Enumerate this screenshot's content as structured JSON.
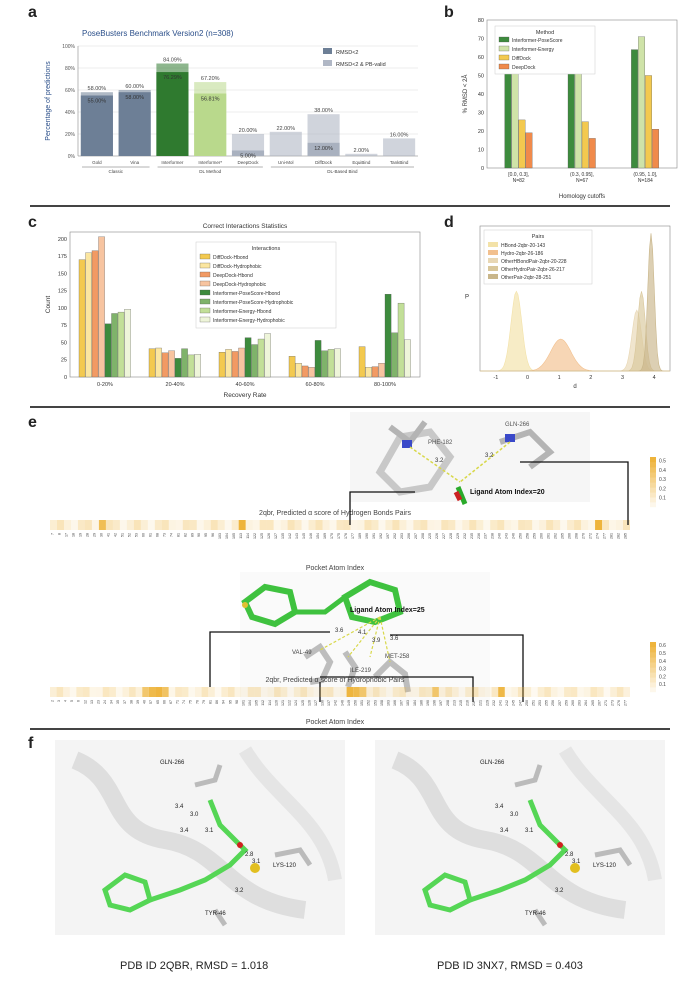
{
  "panel_labels": [
    "a",
    "b",
    "c",
    "d",
    "e",
    "f"
  ],
  "chart_data": [
    {
      "id": "a",
      "type": "bar",
      "title": "PoseBusters Benchmark Version2 (n=308)",
      "ylabel": "Percentage of predictions",
      "ylim": [
        0,
        100
      ],
      "yticks": [
        "0%",
        "20%",
        "40%",
        "60%",
        "80%",
        "100%"
      ],
      "categories": [
        "Gold",
        "Vina",
        "Interformer",
        "Interformer*",
        "DeepDock",
        "Uni-Mol",
        "DiffDock",
        "EquiBind",
        "TankBind"
      ],
      "groups": [
        {
          "label": "Classic",
          "start": 0,
          "end": 1
        },
        {
          "label": "DL Method",
          "start": 2,
          "end": 4
        },
        {
          "label": "DL-Based Bind",
          "start": 5,
          "end": 8
        }
      ],
      "series": [
        {
          "name": "RMSD<2",
          "values": [
            58.0,
            60.0,
            84.09,
            67.2,
            20.0,
            22.0,
            38.0,
            2.0,
            16.0
          ]
        },
        {
          "name": "RMSD<2 & PB-valid",
          "values": [
            55.0,
            58.0,
            76.29,
            56.81,
            5.0,
            null,
            12.0,
            null,
            null
          ]
        }
      ],
      "top_labels": [
        "58.00%",
        "60.00%",
        "84.09%",
        "67.20%",
        "20.00%",
        "22.00%",
        "38.00%",
        "2.00%",
        "16.00%"
      ],
      "inner_labels": [
        "55.00%",
        "58.00%",
        "76.29%",
        "56.81%",
        "5.00%",
        "",
        "12.00%",
        "",
        ""
      ],
      "colors": {
        "classic": "#6d7f96",
        "interformer": "#2f7a2f",
        "interformer_star": "#b9d98c",
        "other": "#a9b1bf"
      }
    },
    {
      "id": "b",
      "type": "bar",
      "xlabel": "Homology cutoffs",
      "ylabel": "% RMSD < 2Å",
      "ylim": [
        0,
        80
      ],
      "yticks": [
        "0",
        "10",
        "20",
        "30",
        "40",
        "50",
        "60",
        "70",
        "80"
      ],
      "categories": [
        "[0.0, 0.3],\nN=82",
        "(0.3, 0.95],\nN=67",
        "(0.95, 1.0],\nN=184"
      ],
      "legend_title": "Method",
      "series": [
        {
          "name": "Interformer-PoseScore",
          "color": "#3d8b3d",
          "values": [
            63,
            57,
            64
          ]
        },
        {
          "name": "Interformer-Energy",
          "color": "#cfe3a8",
          "values": [
            53,
            57,
            71
          ]
        },
        {
          "name": "DiffDock",
          "color": "#f3c94f",
          "values": [
            26,
            25,
            50
          ]
        },
        {
          "name": "DeepDock",
          "color": "#f08a4b",
          "values": [
            19,
            16,
            21
          ]
        }
      ]
    },
    {
      "id": "c",
      "type": "bar",
      "title": "Correct Interactions Statistics",
      "xlabel": "Recovery Rate",
      "ylabel": "Count",
      "ylim": [
        0,
        210
      ],
      "yticks": [
        "0",
        "25",
        "50",
        "75",
        "100",
        "125",
        "150",
        "175",
        "200"
      ],
      "categories": [
        "0-20%",
        "20-40%",
        "40-60%",
        "60-80%",
        "80-100%"
      ],
      "legend_title": "Interactions",
      "series": [
        {
          "name": "DiffDock-Hbond",
          "color": "#f3c94f",
          "values": [
            170,
            41,
            36,
            30,
            44
          ]
        },
        {
          "name": "DiffDock-Hydrophobic",
          "color": "#fbe6a0",
          "values": [
            180,
            42,
            40,
            20,
            14
          ]
        },
        {
          "name": "DeepDock-Hbond",
          "color": "#f29a63",
          "values": [
            183,
            35,
            37,
            16,
            15
          ]
        },
        {
          "name": "DeepDock-Hydrophobic",
          "color": "#f7c4a0",
          "values": [
            203,
            38,
            42,
            14,
            20
          ]
        },
        {
          "name": "Interformer-PoseScore-Hbond",
          "color": "#3d8b3d",
          "values": [
            77,
            27,
            57,
            53,
            120
          ]
        },
        {
          "name": "Interformer-PoseScore-Hydrophobic",
          "color": "#7fb36a",
          "values": [
            92,
            41,
            47,
            38,
            64
          ]
        },
        {
          "name": "Interformer-Energy-Hbond",
          "color": "#c2df98",
          "values": [
            94,
            32,
            55,
            40,
            107
          ]
        },
        {
          "name": "Interformer-Energy-Hydrophobic",
          "color": "#eef5d9",
          "values": [
            98,
            33,
            63,
            41,
            54
          ]
        }
      ]
    },
    {
      "id": "d",
      "type": "area",
      "xlabel": "d",
      "ylabel": "P",
      "xlim": [
        -1.5,
        4.5
      ],
      "xticks": [
        "-1",
        "0",
        "1",
        "2",
        "3",
        "4"
      ],
      "legend_title": "Pairs",
      "series": [
        {
          "name": "HBond-2qbr-20-143",
          "color": "#f3e2a8",
          "mean": -0.35,
          "sd": 0.17,
          "peak": 0.55
        },
        {
          "name": "Hydro-2qbr-26-186",
          "color": "#f2c08e",
          "mean": 1.05,
          "sd": 0.32,
          "peak": 0.22
        },
        {
          "name": "OtherHBondPair-2qbr-20-228",
          "color": "#e8d7b4",
          "mean": 3.45,
          "sd": 0.15,
          "peak": 0.42
        },
        {
          "name": "OtherHydroPair-2qbr-26-217",
          "color": "#d9c79b",
          "mean": 3.6,
          "sd": 0.12,
          "peak": 0.55
        },
        {
          "name": "OtherPair-2qbr-28-251",
          "color": "#c9b68a",
          "mean": 3.9,
          "sd": 0.1,
          "peak": 0.95
        }
      ]
    }
  ],
  "panel_e": {
    "hbond": {
      "residue_labels": [
        "PHE-182",
        "GLN-266"
      ],
      "distance_labels": [
        "3.2",
        "3.2"
      ],
      "ligand_label": "Ligand Atom Index=20",
      "heatmap_title": "2qbr, Predicted α score of Hydrogen Bonds Pairs",
      "xlabel": "Pocket Atom Index",
      "ticks": [
        "7",
        "8",
        "17",
        "18",
        "19",
        "28",
        "29",
        "30",
        "41",
        "42",
        "51",
        "52",
        "53",
        "60",
        "61",
        "68",
        "73",
        "74",
        "81",
        "82",
        "89",
        "90",
        "95",
        "96",
        "103",
        "104",
        "105",
        "113",
        "114",
        "122",
        "125",
        "126",
        "127",
        "135",
        "142",
        "143",
        "145",
        "146",
        "154",
        "169",
        "170",
        "175",
        "176",
        "177",
        "189",
        "190",
        "191",
        "192",
        "197",
        "202",
        "203",
        "206",
        "207",
        "208",
        "225",
        "226",
        "227",
        "228",
        "229",
        "232",
        "235",
        "236",
        "237",
        "238",
        "240",
        "243",
        "246",
        "250",
        "258",
        "259",
        "260",
        "261",
        "262",
        "265",
        "266",
        "268",
        "270",
        "272",
        "274",
        "277",
        "281",
        "282",
        "285"
      ],
      "colorbar_ticks": [
        "0.1",
        "0.2",
        "0.3",
        "0.4",
        "0.5"
      ]
    },
    "hydrophobic": {
      "residue_labels": [
        "VAL-49",
        "ILE-219",
        "MET-258"
      ],
      "distance_labels": [
        "3.6",
        "4.1",
        "3.9",
        "3.6"
      ],
      "ligand_label": "Ligand Atom Index=25",
      "heatmap_title": "2qbr, Predicted α score of Hydrophobic Pairs",
      "xlabel": "Pocket Atom Index",
      "ticks": [
        "2",
        "3",
        "4",
        "5",
        "6",
        "12",
        "13",
        "23",
        "24",
        "34",
        "35",
        "37",
        "38",
        "39",
        "40",
        "57",
        "65",
        "66",
        "67",
        "71",
        "74",
        "75",
        "76",
        "79",
        "81",
        "86",
        "94",
        "95",
        "98",
        "101",
        "104",
        "105",
        "112",
        "114",
        "120",
        "121",
        "122",
        "124",
        "125",
        "126",
        "127",
        "130",
        "137",
        "142",
        "146",
        "149",
        "150",
        "151",
        "152",
        "153",
        "158",
        "163",
        "166",
        "167",
        "183",
        "184",
        "186",
        "190",
        "196",
        "197",
        "208",
        "213",
        "215",
        "216",
        "217",
        "221",
        "229",
        "232",
        "241",
        "242",
        "245",
        "247",
        "250",
        "251",
        "253",
        "255",
        "256",
        "257",
        "259",
        "260",
        "263",
        "264",
        "265",
        "267",
        "271",
        "273",
        "276",
        "277"
      ],
      "colorbar_ticks": [
        "0.1",
        "0.2",
        "0.3",
        "0.4",
        "0.5",
        "0.6"
      ]
    }
  },
  "panel_f": {
    "left": {
      "caption": "PDB ID 2QBR, RMSD = 1.018",
      "residue_labels": [
        "GLN-266",
        "LYS-120",
        "TYR-46"
      ],
      "distance_labels": [
        "3.4",
        "3.0",
        "3.4",
        "3.1",
        "2.8",
        "3.1",
        "3.2"
      ]
    },
    "right": {
      "caption": "PDB ID 3NX7, RMSD = 0.403",
      "residue_labels": [
        "GLN-266",
        "LYS-120",
        "TYR-46"
      ],
      "distance_labels": [
        "3.4",
        "3.0",
        "3.4",
        "3.1",
        "2.8",
        "3.1",
        "3.2"
      ]
    }
  }
}
